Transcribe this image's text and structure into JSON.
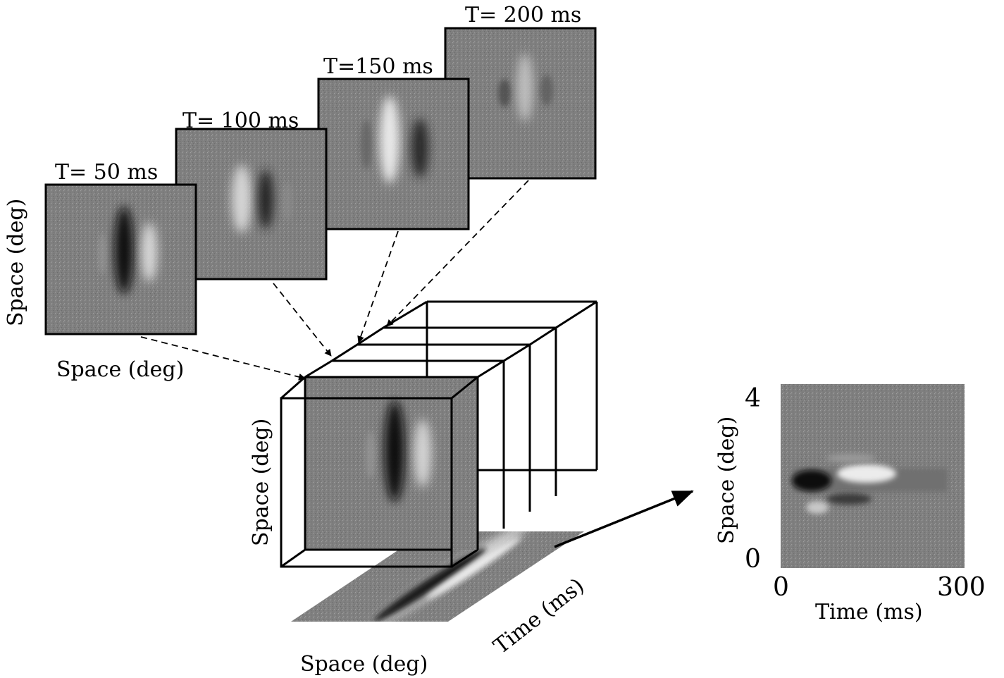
{
  "frames": [
    {
      "label": "T= 50 ms",
      "pattern": "dark-light"
    },
    {
      "label": "T= 100 ms",
      "pattern": "light-dark"
    },
    {
      "label": "T=150 ms",
      "pattern": "light-dark-strong"
    },
    {
      "label": "T= 200 ms",
      "pattern": "faint"
    }
  ],
  "axis_labels": {
    "frame_y": "Space (deg)",
    "frame_x": "Space (deg)",
    "cube_y": "Space (deg)",
    "cube_bottom": "Space (deg)",
    "cube_time": "Time (ms)"
  },
  "xt_plot": {
    "y_label": "Space (deg)",
    "x_label": "Time (ms)",
    "y_max": "4",
    "y_min": "0",
    "x_min": "0",
    "x_max": "300"
  },
  "colors": {
    "ink": "#000000",
    "background_gray": "#808080"
  }
}
